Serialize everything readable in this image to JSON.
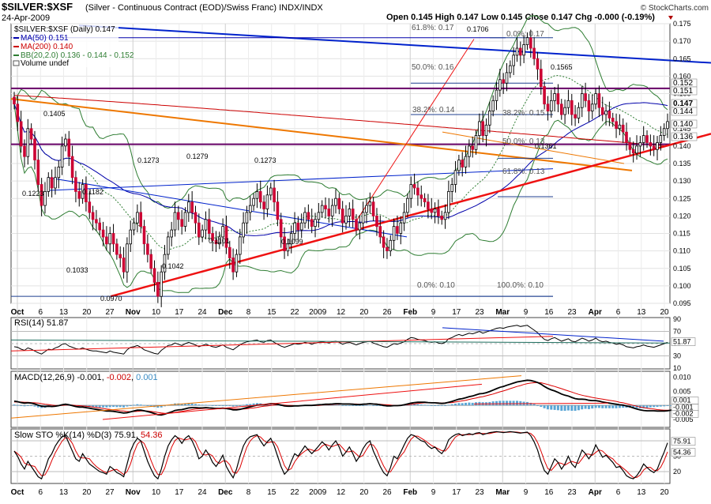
{
  "header": {
    "symbol": "$SILVER:$XSF",
    "description": "(Silver - Continuous Contract (EOD)/Swiss Franc) INDX/INDX",
    "date": "24-Apr-2009",
    "source": "© StockCharts.com",
    "ohlc": "Open 0.145  High 0.147  Low 0.145  Close 0.147  Chg -0.000 (-0.19%)"
  },
  "legend": {
    "main": "$SILVER:$XSF (Daily) 0.147",
    "ma50": "MA(50) 0.151",
    "ma200": "MA(200) 0.140",
    "bb": "BB(20,2.0) 0.136 - 0.144 - 0.152",
    "volume": "Volume undef"
  },
  "colors": {
    "up": "#000000",
    "down": "#cc0033",
    "ma50": "#0000aa",
    "ma200": "#cc0000",
    "bb": "#2e7d32",
    "trend_blue": "#0022cc",
    "trend_red": "#ee1111",
    "trend_orange": "#ee7700",
    "purple": "#660066",
    "rsi": "#000000",
    "hist": "#5aa6d6",
    "sto_k": "#000000",
    "sto_d": "#dd0000"
  },
  "chart_data": [
    {
      "type": "candlestick",
      "title": "$SILVER:$XSF (Daily)",
      "ylim": [
        0.095,
        0.175
      ],
      "yticks": [
        0.095,
        0.1,
        0.105,
        0.11,
        0.115,
        0.12,
        0.125,
        0.13,
        0.135,
        0.14,
        0.145,
        0.15,
        0.155,
        0.16,
        0.165,
        0.17,
        0.175
      ],
      "ytick_labels": [
        "0.095",
        "0.100",
        "0.105",
        "0.110",
        "0.115",
        "0.120",
        "0.125",
        "0.130",
        "0.135",
        "0.140",
        "0.145",
        "0.150",
        "0.155",
        "0.160",
        "0.165",
        "0.170",
        "0.175"
      ],
      "last_value_tags": [
        "0.152",
        "0.151",
        "0.147",
        "0.144",
        "0.140",
        "0.136"
      ],
      "closes": [
        0.152,
        0.147,
        0.14,
        0.137,
        0.145,
        0.142,
        0.136,
        0.129,
        0.123,
        0.127,
        0.131,
        0.128,
        0.131,
        0.134,
        0.14,
        0.142,
        0.137,
        0.131,
        0.127,
        0.125,
        0.129,
        0.124,
        0.121,
        0.119,
        0.118,
        0.116,
        0.114,
        0.112,
        0.115,
        0.112,
        0.109,
        0.108,
        0.104,
        0.112,
        0.116,
        0.118,
        0.121,
        0.117,
        0.112,
        0.109,
        0.105,
        0.101,
        0.097,
        0.104,
        0.109,
        0.114,
        0.116,
        0.121,
        0.119,
        0.117,
        0.121,
        0.124,
        0.121,
        0.118,
        0.114,
        0.116,
        0.119,
        0.115,
        0.113,
        0.112,
        0.114,
        0.117,
        0.111,
        0.108,
        0.104,
        0.109,
        0.114,
        0.118,
        0.121,
        0.123,
        0.125,
        0.127,
        0.124,
        0.122,
        0.126,
        0.128,
        0.124,
        0.119,
        0.114,
        0.11,
        0.112,
        0.115,
        0.118,
        0.116,
        0.118,
        0.121,
        0.119,
        0.117,
        0.119,
        0.121,
        0.123,
        0.122,
        0.12,
        0.123,
        0.125,
        0.122,
        0.118,
        0.12,
        0.122,
        0.119,
        0.116,
        0.118,
        0.121,
        0.123,
        0.124,
        0.12,
        0.117,
        0.114,
        0.111,
        0.11,
        0.113,
        0.117,
        0.115,
        0.118,
        0.121,
        0.125,
        0.129,
        0.128,
        0.126,
        0.125,
        0.124,
        0.122,
        0.121,
        0.122,
        0.12,
        0.119,
        0.121,
        0.127,
        0.129,
        0.133,
        0.136,
        0.134,
        0.137,
        0.14,
        0.139,
        0.143,
        0.147,
        0.143,
        0.146,
        0.15,
        0.153,
        0.156,
        0.159,
        0.158,
        0.161,
        0.163,
        0.166,
        0.168,
        0.166,
        0.169,
        0.171,
        0.168,
        0.165,
        0.162,
        0.157,
        0.152,
        0.15,
        0.153,
        0.155,
        0.152,
        0.149,
        0.151,
        0.153,
        0.149,
        0.148,
        0.151,
        0.155,
        0.153,
        0.15,
        0.152,
        0.155,
        0.151,
        0.149,
        0.15,
        0.148,
        0.147,
        0.145,
        0.146,
        0.144,
        0.141,
        0.139,
        0.138,
        0.14,
        0.141,
        0.143,
        0.141,
        0.14,
        0.139,
        0.141,
        0.143,
        0.145,
        0.147
      ],
      "x_labels": [
        "Oct",
        "6",
        "13",
        "20",
        "27",
        "Nov",
        "10",
        "17",
        "24",
        "Dec",
        "8",
        "15",
        "22",
        "2009",
        "12",
        "20",
        "26",
        "Feb",
        "9",
        "17",
        "23",
        "Mar",
        "9",
        "16",
        "23",
        "Apr",
        "6",
        "13",
        "20"
      ],
      "annotations": [
        "0.1405",
        "0.1223",
        "0.1182",
        "0.1033",
        "0.0970",
        "0.1273",
        "0.1042",
        "0.1279",
        "0.1101",
        "0.1273",
        "0.1099",
        "0.1706",
        "0.1565",
        "0.1361",
        "61.8%: 0.17",
        "0.0%: 0.17",
        "50.0%: 0.16",
        "38.2%: 0.14",
        "38.2%: 0.15",
        "50.0%: 0.13",
        "61.8%: 0.13",
        "0.0%: 0.10",
        "100.0%: 0.10"
      ]
    },
    {
      "type": "line",
      "title": "RSI(14)",
      "value_label": "51.87",
      "ylim": [
        10,
        90
      ],
      "ytick_labels": [
        "90",
        "70",
        "50",
        "30",
        "10"
      ],
      "tags": [
        "51.87"
      ],
      "values": [
        45,
        44,
        41,
        39,
        43,
        41,
        38,
        35,
        33,
        37,
        41,
        40,
        43,
        45,
        49,
        50,
        46,
        44,
        42,
        41,
        43,
        41,
        39,
        38,
        38,
        37,
        36,
        35,
        38,
        36,
        35,
        34,
        33,
        40,
        44,
        45,
        47,
        44,
        40,
        38,
        36,
        34,
        33,
        39,
        43,
        47,
        48,
        51,
        49,
        47,
        50,
        52,
        50,
        48,
        45,
        47,
        49,
        47,
        45,
        44,
        46,
        48,
        44,
        42,
        40,
        44,
        48,
        51,
        53,
        54,
        55,
        56,
        53,
        52,
        55,
        56,
        52,
        49,
        46,
        44,
        46,
        48,
        50,
        49,
        50,
        52,
        51,
        49,
        51,
        52,
        53,
        52,
        51,
        53,
        54,
        52,
        49,
        51,
        52,
        50,
        48,
        50,
        52,
        53,
        54,
        51,
        49,
        47,
        45,
        44,
        47,
        50,
        49,
        51,
        53,
        57,
        60,
        59,
        57,
        56,
        55,
        53,
        52,
        53,
        51,
        50,
        52,
        58,
        60,
        63,
        65,
        63,
        65,
        67,
        66,
        68,
        70,
        67,
        69,
        71,
        73,
        75,
        76,
        75,
        77,
        78,
        79,
        80,
        78,
        79,
        80,
        76,
        72,
        68,
        62,
        57,
        55,
        58,
        60,
        57,
        54,
        56,
        58,
        54,
        53,
        56,
        59,
        57,
        54,
        56,
        59,
        55,
        53,
        54,
        52,
        51,
        49,
        50,
        48,
        45,
        44,
        43,
        45,
        46,
        48,
        46,
        45,
        44,
        46,
        48,
        50,
        52
      ]
    },
    {
      "type": "line",
      "title": "MACD(12,26,9)",
      "value_label": "-0.001",
      "signal_label": "-0.002",
      "hist_label": "0.001",
      "ylim": [
        -0.0075,
        0.0115
      ],
      "ytick_labels": [
        "0.010",
        "0.005",
        "0.000",
        "-0.005"
      ],
      "tags": [
        "0.001",
        "-0.001",
        "-0.002"
      ],
      "macd": [
        0.0015,
        0.0013,
        0.001,
        0.0008,
        0.0009,
        0.0008,
        0.0005,
        0.0001,
        -0.0003,
        -0.0004,
        -0.0003,
        -0.0004,
        -0.0003,
        -0.0001,
        0.0002,
        0.0004,
        0.0002,
        -0.0001,
        -0.0004,
        -0.0006,
        -0.0006,
        -0.0008,
        -0.001,
        -0.0012,
        -0.0014,
        -0.0016,
        -0.0018,
        -0.002,
        -0.002,
        -0.0021,
        -0.0023,
        -0.0025,
        -0.0027,
        -0.0026,
        -0.0023,
        -0.002,
        -0.0017,
        -0.0017,
        -0.0019,
        -0.0022,
        -0.0025,
        -0.0029,
        -0.0033,
        -0.0034,
        -0.0031,
        -0.0027,
        -0.0023,
        -0.0018,
        -0.0016,
        -0.0015,
        -0.0012,
        -0.0009,
        -0.0008,
        -0.0008,
        -0.0009,
        -0.0009,
        -0.0008,
        -0.0009,
        -0.001,
        -0.0011,
        -0.0011,
        -0.001,
        -0.0011,
        -0.0013,
        -0.0016,
        -0.0016,
        -0.0014,
        -0.0011,
        -0.0008,
        -0.0005,
        -0.0002,
        0.0001,
        0.0002,
        0.0002,
        0.0004,
        0.0006,
        0.0006,
        0.0004,
        0.0001,
        -0.0002,
        -0.0003,
        -0.0003,
        -0.0002,
        -0.0002,
        -0.0001,
        0.0,
        0.0,
        0.0,
        0.0001,
        0.0002,
        0.0003,
        0.0004,
        0.0004,
        0.0005,
        0.0006,
        0.0006,
        0.0005,
        0.0005,
        0.0005,
        0.0004,
        0.0003,
        0.0003,
        0.0004,
        0.0005,
        0.0006,
        0.0005,
        0.0004,
        0.0002,
        0.0,
        -0.0002,
        -0.0002,
        -0.0001,
        -0.0001,
        0.0,
        0.0002,
        0.0005,
        0.0008,
        0.001,
        0.0011,
        0.0011,
        0.0011,
        0.001,
        0.0009,
        0.0009,
        0.0008,
        0.0007,
        0.0008,
        0.0011,
        0.0014,
        0.0018,
        0.0022,
        0.0024,
        0.0027,
        0.0031,
        0.0033,
        0.0037,
        0.0041,
        0.0042,
        0.0045,
        0.0049,
        0.0054,
        0.0059,
        0.0064,
        0.0067,
        0.0071,
        0.0075,
        0.0079,
        0.0083,
        0.0085,
        0.0087,
        0.0089,
        0.0088,
        0.0085,
        0.0081,
        0.0075,
        0.0067,
        0.006,
        0.0055,
        0.0051,
        0.0046,
        0.004,
        0.0036,
        0.0033,
        0.0028,
        0.0024,
        0.0022,
        0.0022,
        0.0021,
        0.0018,
        0.0017,
        0.0017,
        0.0015,
        0.0012,
        0.001,
        0.0008,
        0.0006,
        0.0004,
        0.0002,
        0.0001,
        -0.0002,
        -0.0005,
        -0.0009,
        -0.0013,
        -0.0016,
        -0.0018,
        -0.0019,
        -0.0019,
        -0.0019,
        -0.002,
        -0.002,
        -0.002,
        -0.0019,
        -0.0017,
        -0.0013,
        -0.001
      ],
      "signal": [
        0.0012,
        0.0012,
        0.0012,
        0.0011,
        0.0011,
        0.001,
        0.0009,
        0.0008,
        0.0006,
        0.0004,
        0.0003,
        0.0001,
        0.0,
        0.0,
        0.0,
        0.0001,
        0.0001,
        0.0001,
        0.0,
        -0.0001,
        -0.0002,
        -0.0003,
        -0.0004,
        -0.0006,
        -0.0007,
        -0.0009,
        -0.0011,
        -0.0013,
        -0.0014,
        -0.0016,
        -0.0017,
        -0.0019,
        -0.002,
        -0.0022,
        -0.0022,
        -0.0022,
        -0.0021,
        -0.002,
        -0.002,
        -0.002,
        -0.0021,
        -0.0023,
        -0.0025,
        -0.0027,
        -0.0028,
        -0.0028,
        -0.0027,
        -0.0025,
        -0.0023,
        -0.0021,
        -0.0019,
        -0.0017,
        -0.0015,
        -0.0013,
        -0.0012,
        -0.0011,
        -0.001,
        -0.001,
        -0.001,
        -0.001,
        -0.001,
        -0.001,
        -0.001,
        -0.0011,
        -0.0012,
        -0.0013,
        -0.0013,
        -0.0013,
        -0.0012,
        -0.001,
        -0.0009,
        -0.0007,
        -0.0005,
        -0.0003,
        -0.0002,
        0.0,
        0.0001,
        0.0002,
        0.0002,
        0.0001,
        0.0,
        0.0,
        -0.0001,
        -0.0001,
        -0.0001,
        -0.0001,
        -0.0001,
        0.0,
        0.0,
        0.0,
        0.0001,
        0.0002,
        0.0002,
        0.0003,
        0.0004,
        0.0004,
        0.0005,
        0.0005,
        0.0005,
        0.0005,
        0.0005,
        0.0004,
        0.0004,
        0.0004,
        0.0005,
        0.0005,
        0.0005,
        0.0004,
        0.0003,
        0.0002,
        0.0001,
        0.0,
        0.0,
        0.0,
        0.0001,
        0.0002,
        0.0004,
        0.0005,
        0.0007,
        0.0008,
        0.0009,
        0.0009,
        0.0009,
        0.0009,
        0.0009,
        0.0008,
        0.0009,
        0.0009,
        0.001,
        0.0012,
        0.0014,
        0.0016,
        0.0018,
        0.0021,
        0.0024,
        0.0026,
        0.0029,
        0.0031,
        0.0034,
        0.0037,
        0.004,
        0.0044,
        0.0048,
        0.0051,
        0.0055,
        0.0059,
        0.0063,
        0.0067,
        0.007,
        0.0074,
        0.0077,
        0.0079,
        0.008,
        0.0081,
        0.008,
        0.0077,
        0.0074,
        0.007,
        0.0067,
        0.0063,
        0.0059,
        0.0055,
        0.0051,
        0.0047,
        0.0043,
        0.0039,
        0.0036,
        0.0033,
        0.0031,
        0.0028,
        0.0026,
        0.0024,
        0.0022,
        0.002,
        0.0018,
        0.0016,
        0.0014,
        0.0011,
        0.0009,
        0.0006,
        0.0003,
        0.0,
        -0.0003,
        -0.0006,
        -0.0008,
        -0.001,
        -0.0012,
        -0.0013,
        -0.0015,
        -0.0016,
        -0.0017,
        -0.0017,
        -0.0017,
        -0.0017,
        -0.0016
      ]
    },
    {
      "type": "line",
      "title": "Slow STO %K(14) %D(3)",
      "k_label": "75.91",
      "d_label": "54.36",
      "ylim": [
        0,
        100
      ],
      "ytick_labels": [
        "80",
        "50",
        "20"
      ],
      "tags": [
        "75.91",
        "54.36"
      ],
      "k": [
        60,
        50,
        35,
        25,
        40,
        30,
        20,
        10,
        6,
        25,
        45,
        55,
        70,
        80,
        88,
        90,
        75,
        60,
        45,
        40,
        55,
        45,
        35,
        30,
        25,
        20,
        18,
        15,
        30,
        25,
        18,
        15,
        10,
        35,
        60,
        75,
        85,
        80,
        60,
        40,
        25,
        12,
        6,
        25,
        50,
        70,
        82,
        90,
        85,
        75,
        85,
        90,
        80,
        65,
        45,
        50,
        62,
        52,
        38,
        30,
        40,
        52,
        30,
        18,
        8,
        25,
        50,
        70,
        82,
        88,
        90,
        92,
        80,
        70,
        78,
        85,
        70,
        50,
        30,
        15,
        22,
        40,
        55,
        50,
        60,
        70,
        62,
        55,
        62,
        70,
        78,
        72,
        62,
        72,
        80,
        68,
        50,
        58,
        68,
        55,
        40,
        50,
        65,
        75,
        80,
        60,
        45,
        30,
        18,
        12,
        28,
        50,
        45,
        58,
        72,
        85,
        92,
        90,
        85,
        80,
        78,
        70,
        65,
        68,
        60,
        55,
        65,
        82,
        88,
        92,
        94,
        90,
        92,
        94,
        92,
        95,
        96,
        92,
        94,
        96,
        97,
        98,
        97,
        96,
        97,
        98,
        97,
        96,
        95,
        96,
        97,
        90,
        78,
        62,
        40,
        22,
        15,
        30,
        45,
        38,
        25,
        35,
        50,
        35,
        28,
        45,
        62,
        55,
        45,
        55,
        72,
        60,
        48,
        52,
        45,
        38,
        28,
        30,
        22,
        12,
        8,
        6,
        12,
        22,
        35,
        28,
        22,
        18,
        25,
        42,
        58,
        76
      ]
    }
  ]
}
